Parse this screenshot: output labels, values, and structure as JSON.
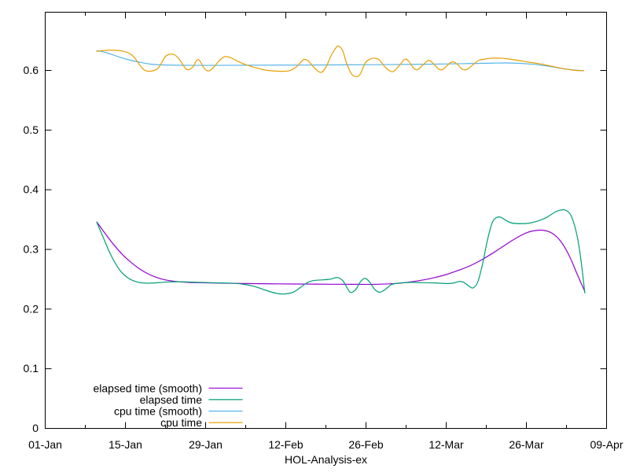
{
  "chart_data": {
    "type": "line",
    "title": "",
    "xlabel": "HOL-Analysis-ex",
    "ylabel": "",
    "grid": false,
    "x_axis": {
      "unit": "date (days from 01-Jan)",
      "tick_labels": [
        "01-Jan",
        "15-Jan",
        "29-Jan",
        "12-Feb",
        "26-Feb",
        "12-Mar",
        "26-Mar",
        "09-Apr"
      ],
      "tick_days": [
        0,
        14,
        28,
        42,
        56,
        70,
        84,
        98
      ],
      "minor_tick_days": [
        7,
        21,
        35,
        49,
        63,
        77,
        91
      ],
      "range_days": [
        0,
        98
      ]
    },
    "y_axis": {
      "tick_labels": [
        "0",
        "0.1",
        "0.2",
        "0.3",
        "0.4",
        "0.5",
        "0.6"
      ],
      "tick_values": [
        0,
        0.1,
        0.2,
        0.3,
        0.4,
        0.5,
        0.6
      ],
      "range": [
        0,
        0.6985
      ]
    },
    "legend": {
      "position": "bottom-left-inside",
      "entries": [
        {
          "label": "elapsed time (smooth)",
          "color": "#9400d3"
        },
        {
          "label": "elapsed time",
          "color": "#009e73"
        },
        {
          "label": "cpu time (smooth)",
          "color": "#56b4e9"
        },
        {
          "label": "cpu time",
          "color": "#e69f00"
        }
      ]
    },
    "colors": {
      "axis": "#000000",
      "background": "#ffffff"
    },
    "series": [
      {
        "name": "elapsed time (smooth)",
        "color": "#9400d3",
        "points": [
          [
            9,
            0.346
          ],
          [
            10.5,
            0.3262
          ],
          [
            12,
            0.3075
          ],
          [
            13.5,
            0.2912
          ],
          [
            15,
            0.2782
          ],
          [
            16.5,
            0.2672
          ],
          [
            18,
            0.2588
          ],
          [
            19.5,
            0.2528
          ],
          [
            21,
            0.2488
          ],
          [
            23,
            0.2462
          ],
          [
            25,
            0.2448
          ],
          [
            27,
            0.2442
          ],
          [
            29,
            0.2438
          ],
          [
            32,
            0.2432
          ],
          [
            35,
            0.2428
          ],
          [
            38,
            0.2425
          ],
          [
            41,
            0.2422
          ],
          [
            44,
            0.242
          ],
          [
            47,
            0.2418
          ],
          [
            50,
            0.2416
          ],
          [
            53,
            0.2415
          ],
          [
            56,
            0.2414
          ],
          [
            58,
            0.2416
          ],
          [
            60,
            0.2422
          ],
          [
            62,
            0.2435
          ],
          [
            64,
            0.2458
          ],
          [
            66,
            0.2488
          ],
          [
            68,
            0.2528
          ],
          [
            70,
            0.2578
          ],
          [
            72,
            0.2645
          ],
          [
            74,
            0.2718
          ],
          [
            76,
            0.2815
          ],
          [
            78,
            0.293
          ],
          [
            80,
            0.3055
          ],
          [
            82,
            0.3178
          ],
          [
            84,
            0.3278
          ],
          [
            85.5,
            0.3315
          ],
          [
            87,
            0.332
          ],
          [
            88.5,
            0.327
          ],
          [
            90,
            0.3135
          ],
          [
            91.5,
            0.289
          ],
          [
            93,
            0.2555
          ],
          [
            94.2,
            0.2295
          ]
        ]
      },
      {
        "name": "elapsed time",
        "color": "#009e73",
        "points": [
          [
            9,
            0.3455
          ],
          [
            10.2,
            0.3185
          ],
          [
            11.5,
            0.2898
          ],
          [
            13,
            0.2655
          ],
          [
            14.5,
            0.2518
          ],
          [
            16,
            0.2455
          ],
          [
            17.5,
            0.2435
          ],
          [
            19,
            0.2438
          ],
          [
            21,
            0.2452
          ],
          [
            23,
            0.2458
          ],
          [
            25,
            0.2455
          ],
          [
            27,
            0.2448
          ],
          [
            29,
            0.2442
          ],
          [
            31,
            0.2438
          ],
          [
            33,
            0.2432
          ],
          [
            35,
            0.241
          ],
          [
            36.5,
            0.238
          ],
          [
            38,
            0.2332
          ],
          [
            39.5,
            0.2285
          ],
          [
            40.7,
            0.2258
          ],
          [
            42,
            0.2255
          ],
          [
            43.5,
            0.2292
          ],
          [
            45,
            0.2395
          ],
          [
            46,
            0.2455
          ],
          [
            47,
            0.248
          ],
          [
            48.5,
            0.249
          ],
          [
            49.8,
            0.2502
          ],
          [
            51,
            0.2528
          ],
          [
            52,
            0.247
          ],
          [
            53.2,
            0.2285
          ],
          [
            54.2,
            0.2328
          ],
          [
            55,
            0.2455
          ],
          [
            55.8,
            0.2515
          ],
          [
            56.6,
            0.2458
          ],
          [
            57.5,
            0.2332
          ],
          [
            58.4,
            0.2282
          ],
          [
            59.4,
            0.2332
          ],
          [
            60.4,
            0.2408
          ],
          [
            61.2,
            0.2428
          ],
          [
            62.5,
            0.2442
          ],
          [
            64,
            0.2448
          ],
          [
            66,
            0.2442
          ],
          [
            68,
            0.2438
          ],
          [
            70,
            0.2428
          ],
          [
            71.2,
            0.2435
          ],
          [
            72.2,
            0.2462
          ],
          [
            73,
            0.245
          ],
          [
            74,
            0.2382
          ],
          [
            74.7,
            0.2355
          ],
          [
            75.5,
            0.2452
          ],
          [
            76.3,
            0.2735
          ],
          [
            77.2,
            0.3155
          ],
          [
            78,
            0.344
          ],
          [
            78.7,
            0.353
          ],
          [
            79.5,
            0.354
          ],
          [
            80.5,
            0.3482
          ],
          [
            81.5,
            0.3442
          ],
          [
            83,
            0.3432
          ],
          [
            84.5,
            0.344
          ],
          [
            86,
            0.3475
          ],
          [
            87.5,
            0.3535
          ],
          [
            89,
            0.3625
          ],
          [
            90,
            0.366
          ],
          [
            90.8,
            0.3658
          ],
          [
            91.8,
            0.3565
          ],
          [
            92.8,
            0.325
          ],
          [
            93.5,
            0.284
          ],
          [
            94.2,
            0.227
          ]
        ]
      },
      {
        "name": "cpu time (smooth)",
        "color": "#56b4e9",
        "points": [
          [
            9,
            0.633
          ],
          [
            10,
            0.6315
          ],
          [
            11.3,
            0.6278
          ],
          [
            13,
            0.6222
          ],
          [
            15,
            0.6168
          ],
          [
            17,
            0.6128
          ],
          [
            18.7,
            0.6102
          ],
          [
            20.5,
            0.6092
          ],
          [
            23,
            0.6087
          ],
          [
            26,
            0.6085
          ],
          [
            30,
            0.6085
          ],
          [
            35,
            0.6087
          ],
          [
            40,
            0.6089
          ],
          [
            45,
            0.609
          ],
          [
            50,
            0.6092
          ],
          [
            55,
            0.6095
          ],
          [
            60,
            0.6098
          ],
          [
            65,
            0.6102
          ],
          [
            70,
            0.6108
          ],
          [
            74,
            0.6115
          ],
          [
            78,
            0.6122
          ],
          [
            80.5,
            0.6125
          ],
          [
            82.5,
            0.612
          ],
          [
            84.5,
            0.6108
          ],
          [
            86.5,
            0.6088
          ],
          [
            88.5,
            0.606
          ],
          [
            90.5,
            0.6028
          ],
          [
            92.5,
            0.6005
          ],
          [
            94,
            0.5998
          ]
        ]
      },
      {
        "name": "cpu time",
        "color": "#e69f00",
        "points": [
          [
            9,
            0.632
          ],
          [
            10,
            0.6332
          ],
          [
            11.5,
            0.634
          ],
          [
            13,
            0.6332
          ],
          [
            14.2,
            0.6305
          ],
          [
            15.2,
            0.6252
          ],
          [
            16,
            0.6162
          ],
          [
            16.8,
            0.6052
          ],
          [
            17.6,
            0.5992
          ],
          [
            18.6,
            0.599
          ],
          [
            19.6,
            0.6028
          ],
          [
            20.3,
            0.6125
          ],
          [
            21,
            0.6235
          ],
          [
            21.8,
            0.6272
          ],
          [
            22.6,
            0.6262
          ],
          [
            23.5,
            0.6175
          ],
          [
            24.4,
            0.6045
          ],
          [
            25,
            0.6012
          ],
          [
            25.8,
            0.6062
          ],
          [
            26.7,
            0.6185
          ],
          [
            27.8,
            0.603
          ],
          [
            28.5,
            0.599
          ],
          [
            29.3,
            0.6042
          ],
          [
            30.2,
            0.6145
          ],
          [
            31,
            0.6215
          ],
          [
            31.6,
            0.6232
          ],
          [
            32.6,
            0.6205
          ],
          [
            33.6,
            0.6152
          ],
          [
            34.6,
            0.6112
          ],
          [
            35.8,
            0.6072
          ],
          [
            37.1,
            0.6035
          ],
          [
            38.5,
            0.6005
          ],
          [
            40,
            0.599
          ],
          [
            41.5,
            0.5985
          ],
          [
            42.7,
            0.5998
          ],
          [
            43.7,
            0.6048
          ],
          [
            44.6,
            0.6135
          ],
          [
            45.2,
            0.6185
          ],
          [
            46,
            0.6152
          ],
          [
            47,
            0.6042
          ],
          [
            48.1,
            0.5966
          ],
          [
            49,
            0.6052
          ],
          [
            49.9,
            0.6245
          ],
          [
            50.8,
            0.6385
          ],
          [
            51.2,
            0.6408
          ],
          [
            51.9,
            0.6338
          ],
          [
            52.6,
            0.6125
          ],
          [
            53.4,
            0.5952
          ],
          [
            54.1,
            0.59
          ],
          [
            54.9,
            0.5925
          ],
          [
            55.9,
            0.613
          ],
          [
            56.7,
            0.6188
          ],
          [
            57.4,
            0.6205
          ],
          [
            58.3,
            0.6178
          ],
          [
            59.3,
            0.606
          ],
          [
            60.2,
            0.599
          ],
          [
            60.9,
            0.5988
          ],
          [
            61.9,
            0.6092
          ],
          [
            62.8,
            0.6188
          ],
          [
            63.5,
            0.615
          ],
          [
            64.3,
            0.604
          ],
          [
            65,
            0.6012
          ],
          [
            65.9,
            0.6088
          ],
          [
            66.9,
            0.6168
          ],
          [
            67.7,
            0.612
          ],
          [
            68.6,
            0.603
          ],
          [
            69.3,
            0.6012
          ],
          [
            70.2,
            0.6085
          ],
          [
            71.1,
            0.6145
          ],
          [
            72,
            0.6098
          ],
          [
            72.8,
            0.602
          ],
          [
            73.6,
            0.6018
          ],
          [
            74.6,
            0.6088
          ],
          [
            75.7,
            0.6168
          ],
          [
            77.1,
            0.6195
          ],
          [
            78.6,
            0.6208
          ],
          [
            80.4,
            0.6198
          ],
          [
            82.4,
            0.617
          ],
          [
            84.4,
            0.6138
          ],
          [
            86.4,
            0.611
          ],
          [
            88.4,
            0.607
          ],
          [
            90.4,
            0.603
          ],
          [
            92.4,
            0.6002
          ],
          [
            94,
            0.5995
          ]
        ]
      }
    ]
  }
}
